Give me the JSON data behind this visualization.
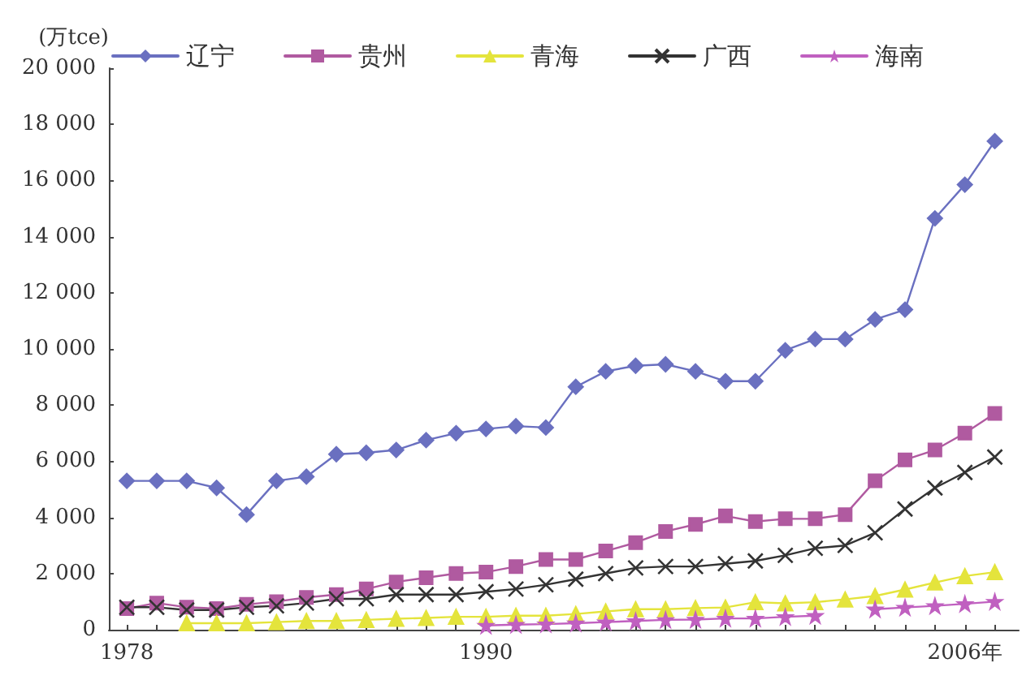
{
  "chart_data": {
    "type": "line",
    "ylabel": "(万tce)",
    "legend": "top",
    "grid": false,
    "line_style": "solid",
    "x": [
      1978,
      1979,
      1980,
      1981,
      1982,
      1983,
      1984,
      1985,
      1986,
      1987,
      1988,
      1989,
      1990,
      1991,
      1992,
      1993,
      1994,
      1995,
      1996,
      1997,
      1998,
      1999,
      2000,
      2001,
      2002,
      2003,
      2004,
      2005,
      2006,
      2007
    ],
    "xlim": [
      1977.4,
      2007.8
    ],
    "xticks": [
      {
        "value": 1978,
        "label": "1978"
      },
      {
        "value": 1979,
        "label": null
      },
      {
        "value": 1980,
        "label": null
      },
      {
        "value": 1981,
        "label": null
      },
      {
        "value": 1982,
        "label": null
      },
      {
        "value": 1983,
        "label": null
      },
      {
        "value": 1984,
        "label": null
      },
      {
        "value": 1985,
        "label": null
      },
      {
        "value": 1986,
        "label": null
      },
      {
        "value": 1987,
        "label": null
      },
      {
        "value": 1988,
        "label": null
      },
      {
        "value": 1989,
        "label": null
      },
      {
        "value": 1990,
        "label": "1990"
      },
      {
        "value": 1991,
        "label": null
      },
      {
        "value": 1992,
        "label": null
      },
      {
        "value": 1993,
        "label": null
      },
      {
        "value": 1994,
        "label": null
      },
      {
        "value": 1995,
        "label": null
      },
      {
        "value": 1996,
        "label": null
      },
      {
        "value": 1997,
        "label": null
      },
      {
        "value": 1998,
        "label": null
      },
      {
        "value": 1999,
        "label": null
      },
      {
        "value": 2000,
        "label": null
      },
      {
        "value": 2001,
        "label": null
      },
      {
        "value": 2002,
        "label": null
      },
      {
        "value": 2003,
        "label": null
      },
      {
        "value": 2004,
        "label": null
      },
      {
        "value": 2005,
        "label": null
      },
      {
        "value": 2006,
        "label": "2006年"
      },
      {
        "value": 2007,
        "label": null
      }
    ],
    "ylim": [
      0,
      20000
    ],
    "yticks": [
      0,
      {
        "value": 2000,
        "label": "2 000"
      },
      {
        "value": 4000,
        "label": "4 000"
      },
      {
        "value": 6000,
        "label": "6 000"
      },
      {
        "value": 8000,
        "label": "8 000"
      },
      {
        "value": 10000,
        "label": "10 000"
      },
      {
        "value": 12000,
        "label": "12 000"
      },
      {
        "value": 14000,
        "label": "14 000"
      },
      {
        "value": 16000,
        "label": "16 000"
      },
      {
        "value": 18000,
        "label": "18 000"
      },
      {
        "value": 20000,
        "label": "20 000"
      }
    ],
    "series": [
      {
        "name": "辽宁",
        "color": "#6a70c0",
        "marker": "diamond",
        "values": [
          5300,
          5300,
          5300,
          5050,
          4100,
          5300,
          5450,
          6250,
          6300,
          6400,
          6750,
          7000,
          7150,
          7250,
          7200,
          8650,
          9200,
          9400,
          9450,
          9200,
          8850,
          8850,
          9950,
          10350,
          10350,
          11050,
          11400,
          14650,
          15850,
          17400
        ]
      },
      {
        "name": "贵州",
        "color": "#b05aa0",
        "marker": "square",
        "values": [
          750,
          950,
          800,
          750,
          900,
          1000,
          1150,
          1250,
          1450,
          1700,
          1850,
          2000,
          2050,
          2250,
          2500,
          2500,
          2800,
          3100,
          3500,
          3750,
          4050,
          3850,
          3950,
          3950,
          4100,
          5300,
          6050,
          6400,
          7000,
          7700
        ]
      },
      {
        "name": "青海",
        "color": "#e4e43c",
        "marker": "triangle",
        "values": [
          null,
          null,
          230,
          230,
          230,
          270,
          310,
          310,
          350,
          390,
          420,
          460,
          460,
          500,
          500,
          560,
          650,
          730,
          730,
          770,
          790,
          980,
          940,
          980,
          1080,
          1200,
          1430,
          1680,
          1910,
          2050
        ]
      },
      {
        "name": "广西",
        "color": "#333333",
        "marker": "cross",
        "values": [
          800,
          800,
          700,
          700,
          800,
          850,
          950,
          1100,
          1100,
          1250,
          1250,
          1250,
          1350,
          1450,
          1600,
          1800,
          2000,
          2200,
          2250,
          2250,
          2350,
          2450,
          2650,
          2900,
          3000,
          3450,
          4300,
          5050,
          5600,
          6150
        ]
      },
      {
        "name": "海南",
        "color": "#c060c0",
        "marker": "star",
        "values": [
          null,
          null,
          null,
          null,
          null,
          null,
          null,
          null,
          null,
          null,
          null,
          null,
          150,
          180,
          200,
          230,
          270,
          310,
          350,
          360,
          400,
          400,
          460,
          500,
          null,
          730,
          790,
          850,
          920,
          1000
        ]
      }
    ]
  }
}
